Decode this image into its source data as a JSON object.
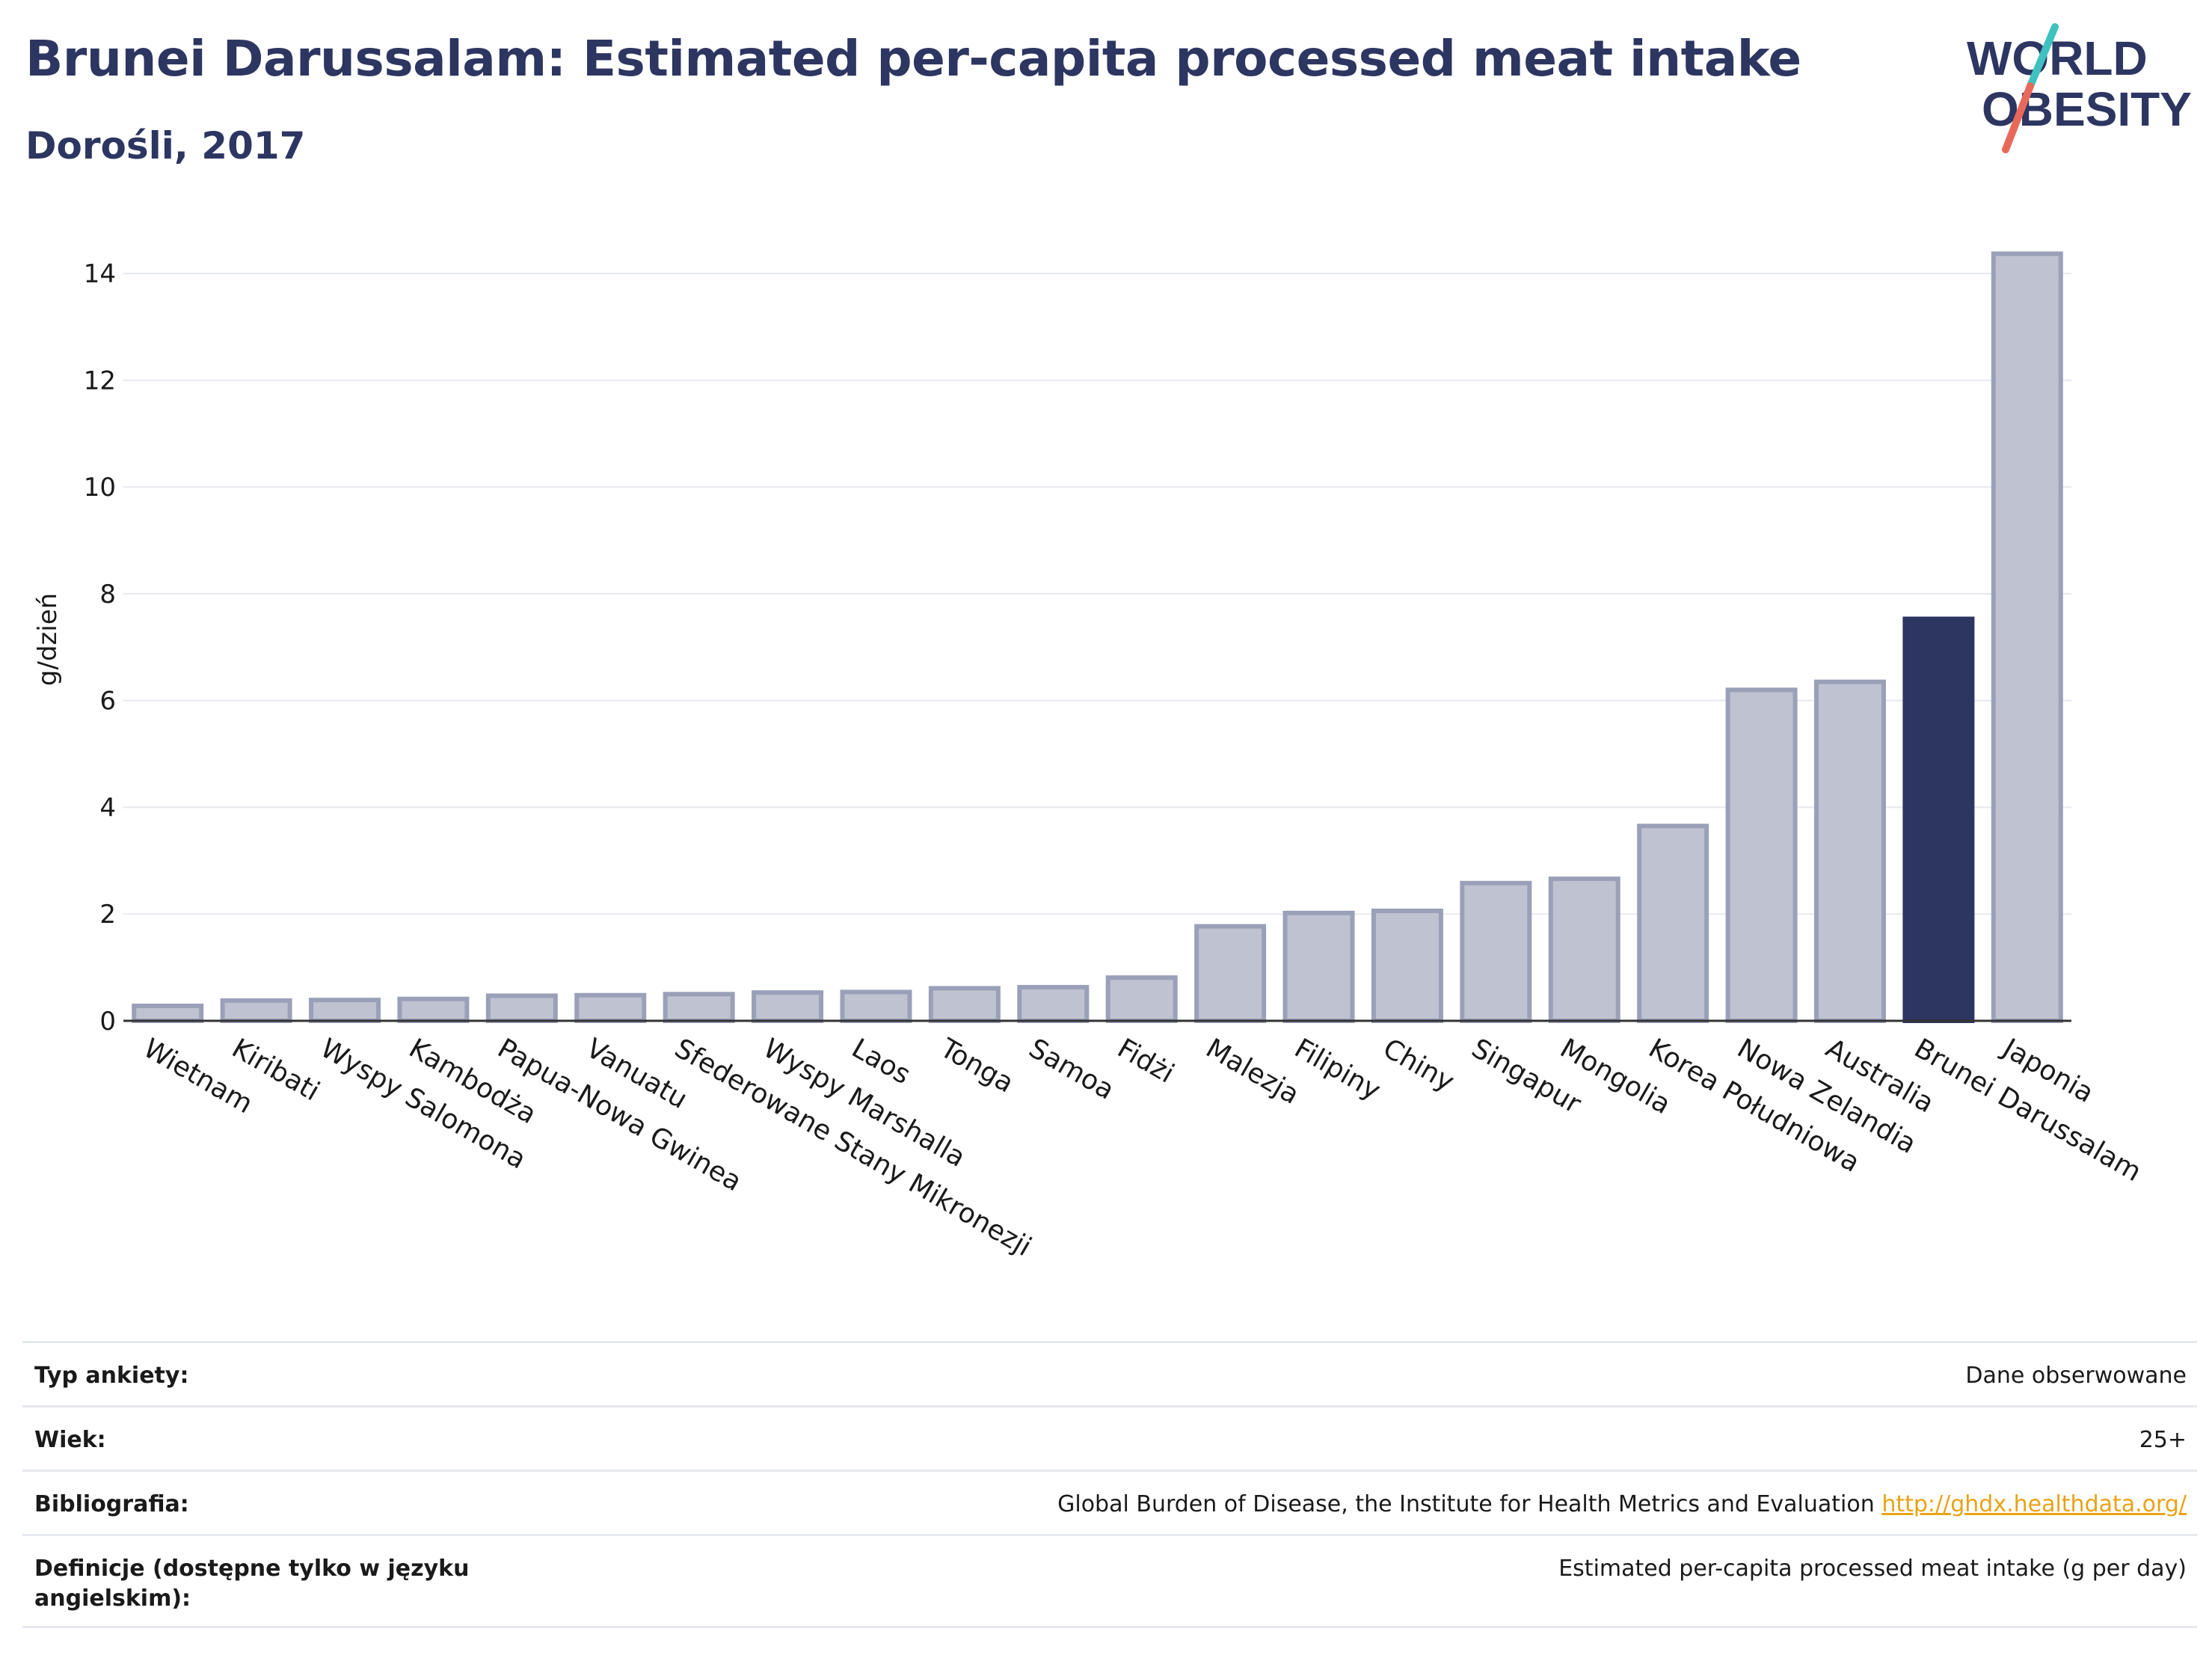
{
  "header": {
    "title": "Brunei Darussalam: Estimated per-capita processed meat intake",
    "subtitle": "Dorośli, 2017"
  },
  "logo": {
    "line1": "WORLD",
    "line2": "OBESITY",
    "colors": {
      "text": "#2d3561",
      "slash_top": "#3fc1c0",
      "slash_bottom": "#e8695a"
    }
  },
  "chart_data": {
    "type": "bar",
    "ylabel": "g/dzień",
    "ylim": [
      0,
      14.5
    ],
    "yticks": [
      0,
      2,
      4,
      6,
      8,
      10,
      12,
      14
    ],
    "grid": true,
    "categories": [
      "Wietnam",
      "Kiribati",
      "Wyspy Salomona",
      "Kambodża",
      "Papua-Nowa Gwinea",
      "Vanuatu",
      "Sfederowane Stany Mikronezji",
      "Wyspy Marshalla",
      "Laos",
      "Tonga",
      "Samoa",
      "Fidżi",
      "Malezja",
      "Filipiny",
      "Chiny",
      "Singapur",
      "Mongolia",
      "Korea Południowa",
      "Nowa Zelandia",
      "Australia",
      "Brunei Darussalam",
      "Japonia"
    ],
    "values": [
      0.28,
      0.38,
      0.39,
      0.41,
      0.47,
      0.48,
      0.5,
      0.53,
      0.54,
      0.61,
      0.63,
      0.81,
      1.77,
      2.02,
      2.06,
      2.58,
      2.66,
      3.65,
      6.2,
      6.35,
      7.53,
      14.37
    ],
    "highlight": "Brunei Darussalam",
    "colors": {
      "bar": "#bfc2d0",
      "bar_border": "#9aa0b8",
      "highlight": "#2d3561",
      "grid": "#e6e8ef",
      "axis": "#333333"
    }
  },
  "info": {
    "rows": [
      {
        "label": "Typ ankiety:",
        "value": "Dane obserwowane"
      },
      {
        "label": "Wiek:",
        "value": "25+"
      },
      {
        "label": "Bibliografia:",
        "value": "Global Burden of Disease, the Institute for Health Metrics and Evaluation",
        "link": "http://ghdx.healthdata.org/"
      },
      {
        "label": "Definicje (dostępne tylko w języku angielskim):",
        "value": "Estimated per-capita processed meat intake (g per day)"
      }
    ]
  }
}
